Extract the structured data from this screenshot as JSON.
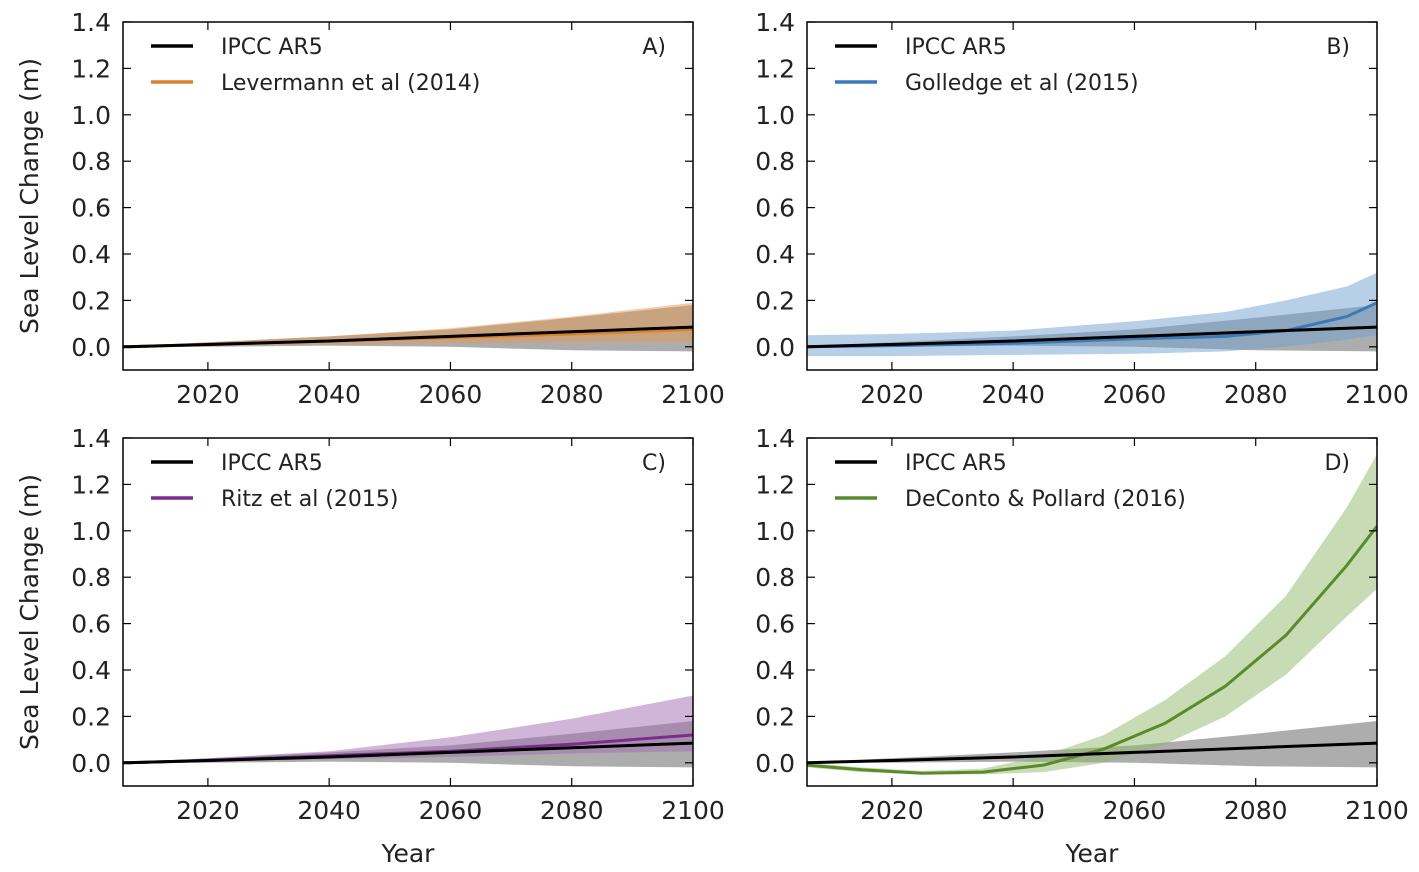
{
  "chart_data": [
    {
      "type": "line",
      "panel_label": "A)",
      "ylabel": "Sea Level Change (m)",
      "xlabel": "",
      "xlim": [
        2006,
        2100
      ],
      "ylim": [
        -0.1,
        1.4
      ],
      "x_ticks": [
        "2020",
        "2040",
        "2060",
        "2080",
        "2100"
      ],
      "y_ticks": [
        "0.0",
        "0.2",
        "0.4",
        "0.6",
        "0.8",
        "1.0",
        "1.2",
        "1.4"
      ],
      "legend_position": "top-left",
      "series": [
        {
          "name": "IPCC AR5",
          "color": "#000000",
          "band_color": "#777777",
          "x": [
            2006,
            2020,
            2040,
            2060,
            2080,
            2100
          ],
          "y": [
            0.0,
            0.01,
            0.025,
            0.045,
            0.065,
            0.085
          ],
          "lower": [
            0.0,
            0.0,
            0.005,
            0.0,
            -0.015,
            -0.02
          ],
          "upper": [
            0.0,
            0.02,
            0.045,
            0.075,
            0.125,
            0.18
          ]
        },
        {
          "name": "Levermann et al (2014)",
          "color": "#d9822b",
          "band_color": "#e69a52",
          "x": [
            2006,
            2020,
            2040,
            2060,
            2080,
            2100
          ],
          "y": [
            0.0,
            0.01,
            0.025,
            0.04,
            0.055,
            0.075
          ],
          "lower": [
            0.0,
            0.005,
            0.01,
            0.015,
            0.02,
            0.02
          ],
          "upper": [
            0.0,
            0.02,
            0.045,
            0.08,
            0.13,
            0.19
          ]
        }
      ]
    },
    {
      "type": "line",
      "panel_label": "B)",
      "ylabel": "",
      "xlabel": "",
      "xlim": [
        2006,
        2100
      ],
      "ylim": [
        -0.1,
        1.4
      ],
      "x_ticks": [
        "2020",
        "2040",
        "2060",
        "2080",
        "2100"
      ],
      "y_ticks": [
        "0.0",
        "0.2",
        "0.4",
        "0.6",
        "0.8",
        "1.0",
        "1.2",
        "1.4"
      ],
      "legend_position": "top-left",
      "series": [
        {
          "name": "IPCC AR5",
          "color": "#000000",
          "band_color": "#777777",
          "x": [
            2006,
            2020,
            2040,
            2060,
            2080,
            2100
          ],
          "y": [
            0.0,
            0.01,
            0.025,
            0.045,
            0.065,
            0.085
          ],
          "lower": [
            0.0,
            0.0,
            0.005,
            0.0,
            -0.015,
            -0.02
          ],
          "upper": [
            0.0,
            0.02,
            0.045,
            0.075,
            0.125,
            0.18
          ]
        },
        {
          "name": "Golledge et al (2015)",
          "color": "#3a7ab8",
          "band_color": "#6f9fd0",
          "x": [
            2006,
            2020,
            2040,
            2060,
            2075,
            2085,
            2095,
            2100
          ],
          "y": [
            0.0,
            0.005,
            0.015,
            0.035,
            0.045,
            0.07,
            0.13,
            0.19
          ],
          "lower": [
            -0.04,
            -0.04,
            -0.035,
            -0.03,
            -0.02,
            0.0,
            0.03,
            0.05
          ],
          "upper": [
            0.05,
            0.055,
            0.07,
            0.11,
            0.15,
            0.2,
            0.26,
            0.32
          ]
        }
      ]
    },
    {
      "type": "line",
      "panel_label": "C)",
      "ylabel": "Sea Level Change (m)",
      "xlabel": "Year",
      "xlim": [
        2006,
        2100
      ],
      "ylim": [
        -0.1,
        1.4
      ],
      "x_ticks": [
        "2020",
        "2040",
        "2060",
        "2080",
        "2100"
      ],
      "y_ticks": [
        "0.0",
        "0.2",
        "0.4",
        "0.6",
        "0.8",
        "1.0",
        "1.2",
        "1.4"
      ],
      "legend_position": "top-left",
      "series": [
        {
          "name": "IPCC AR5",
          "color": "#000000",
          "band_color": "#777777",
          "x": [
            2006,
            2020,
            2040,
            2060,
            2080,
            2100
          ],
          "y": [
            0.0,
            0.01,
            0.025,
            0.045,
            0.065,
            0.085
          ],
          "lower": [
            0.0,
            0.0,
            0.005,
            0.0,
            -0.015,
            -0.02
          ],
          "upper": [
            0.0,
            0.02,
            0.045,
            0.075,
            0.125,
            0.18
          ]
        },
        {
          "name": "Ritz et al (2015)",
          "color": "#7b2d8b",
          "band_color": "#a46bb4",
          "x": [
            2006,
            2020,
            2040,
            2060,
            2080,
            2100
          ],
          "y": [
            0.0,
            0.01,
            0.03,
            0.05,
            0.08,
            0.12
          ],
          "lower": [
            0.0,
            0.005,
            0.015,
            0.025,
            0.04,
            0.05
          ],
          "upper": [
            0.0,
            0.02,
            0.05,
            0.11,
            0.19,
            0.29
          ]
        }
      ]
    },
    {
      "type": "line",
      "panel_label": "D)",
      "ylabel": "",
      "xlabel": "Year",
      "xlim": [
        2006,
        2100
      ],
      "ylim": [
        -0.1,
        1.4
      ],
      "x_ticks": [
        "2020",
        "2040",
        "2060",
        "2080",
        "2100"
      ],
      "y_ticks": [
        "0.0",
        "0.2",
        "0.4",
        "0.6",
        "0.8",
        "1.0",
        "1.2",
        "1.4"
      ],
      "legend_position": "top-left",
      "series": [
        {
          "name": "IPCC AR5",
          "color": "#000000",
          "band_color": "#777777",
          "x": [
            2006,
            2020,
            2040,
            2060,
            2080,
            2100
          ],
          "y": [
            0.0,
            0.01,
            0.025,
            0.045,
            0.065,
            0.085
          ],
          "lower": [
            0.0,
            0.0,
            0.005,
            0.0,
            -0.015,
            -0.02
          ],
          "upper": [
            0.0,
            0.02,
            0.045,
            0.075,
            0.125,
            0.18
          ]
        },
        {
          "name": "DeConto & Pollard (2016)",
          "color": "#5a8a2a",
          "band_color": "#8fb86a",
          "x": [
            2006,
            2015,
            2025,
            2035,
            2045,
            2055,
            2065,
            2075,
            2085,
            2095,
            2100
          ],
          "y": [
            -0.01,
            -0.03,
            -0.045,
            -0.04,
            -0.01,
            0.06,
            0.17,
            0.33,
            0.55,
            0.85,
            1.02
          ],
          "lower": [
            -0.02,
            -0.04,
            -0.05,
            -0.05,
            -0.04,
            0.0,
            0.08,
            0.2,
            0.38,
            0.63,
            0.75
          ],
          "upper": [
            0.0,
            -0.02,
            -0.035,
            -0.025,
            0.03,
            0.12,
            0.27,
            0.46,
            0.72,
            1.1,
            1.33
          ]
        }
      ]
    }
  ]
}
